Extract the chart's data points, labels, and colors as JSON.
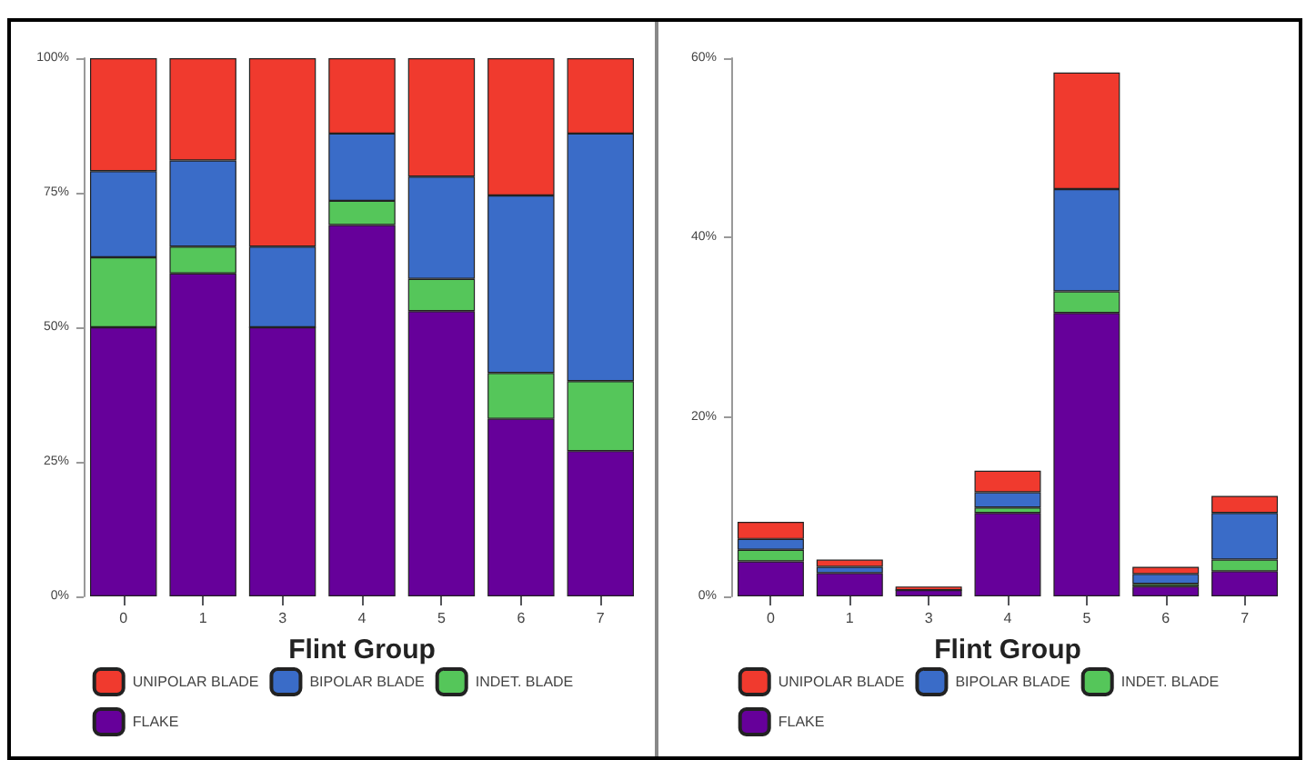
{
  "chart_data": [
    {
      "type": "bar",
      "stacked": true,
      "xlabel": "Flint Group",
      "categories": [
        "0",
        "1",
        "3",
        "4",
        "5",
        "6",
        "7"
      ],
      "ylim": [
        0,
        100
      ],
      "yticks": [
        {
          "value": 0,
          "label": "0%"
        },
        {
          "value": 25,
          "label": "25%"
        },
        {
          "value": 50,
          "label": "50%"
        },
        {
          "value": 75,
          "label": "75%"
        },
        {
          "value": 100,
          "label": "100%"
        }
      ],
      "grid": false,
      "legend": "bottom",
      "series": [
        {
          "name": "FLAKE",
          "color": "#66009a",
          "values": [
            50,
            60,
            50,
            69,
            53,
            33,
            27
          ]
        },
        {
          "name": "INDET. BLADE",
          "color": "#55c65a",
          "values": [
            13,
            5,
            0,
            4.5,
            6,
            8.5,
            13
          ]
        },
        {
          "name": "BIPOLAR BLADE",
          "color": "#3a6cc8",
          "values": [
            16,
            16,
            15,
            12.5,
            19,
            33,
            46
          ]
        },
        {
          "name": "UNIPOLAR BLADE",
          "color": "#f03a2e",
          "values": [
            21,
            19,
            35,
            14,
            22,
            25.5,
            14
          ]
        }
      ]
    },
    {
      "type": "bar",
      "stacked": true,
      "xlabel": "Flint Group",
      "categories": [
        "0",
        "1",
        "3",
        "4",
        "5",
        "6",
        "7"
      ],
      "ylim": [
        0,
        60
      ],
      "yticks": [
        {
          "value": 0,
          "label": "0%"
        },
        {
          "value": 20,
          "label": "20%"
        },
        {
          "value": 40,
          "label": "40%"
        },
        {
          "value": 60,
          "label": "60%"
        }
      ],
      "grid": false,
      "legend": "bottom",
      "series": [
        {
          "name": "FLAKE",
          "color": "#66009a",
          "values": [
            3.9,
            2.6,
            0.7,
            9.3,
            31.6,
            1.1,
            2.8
          ]
        },
        {
          "name": "INDET. BLADE",
          "color": "#55c65a",
          "values": [
            1.3,
            null,
            0,
            0.6,
            2.4,
            0.3,
            1.3
          ]
        },
        {
          "name": "BIPOLAR BLADE",
          "color": "#3a6cc8",
          "values": [
            1.2,
            0.7,
            null,
            1.7,
            11.4,
            1.1,
            5.2
          ]
        },
        {
          "name": "UNIPOLAR BLADE",
          "color": "#f03a2e",
          "values": [
            1.9,
            0.8,
            0.4,
            2.4,
            13,
            0.8,
            1.9
          ]
        }
      ]
    }
  ]
}
